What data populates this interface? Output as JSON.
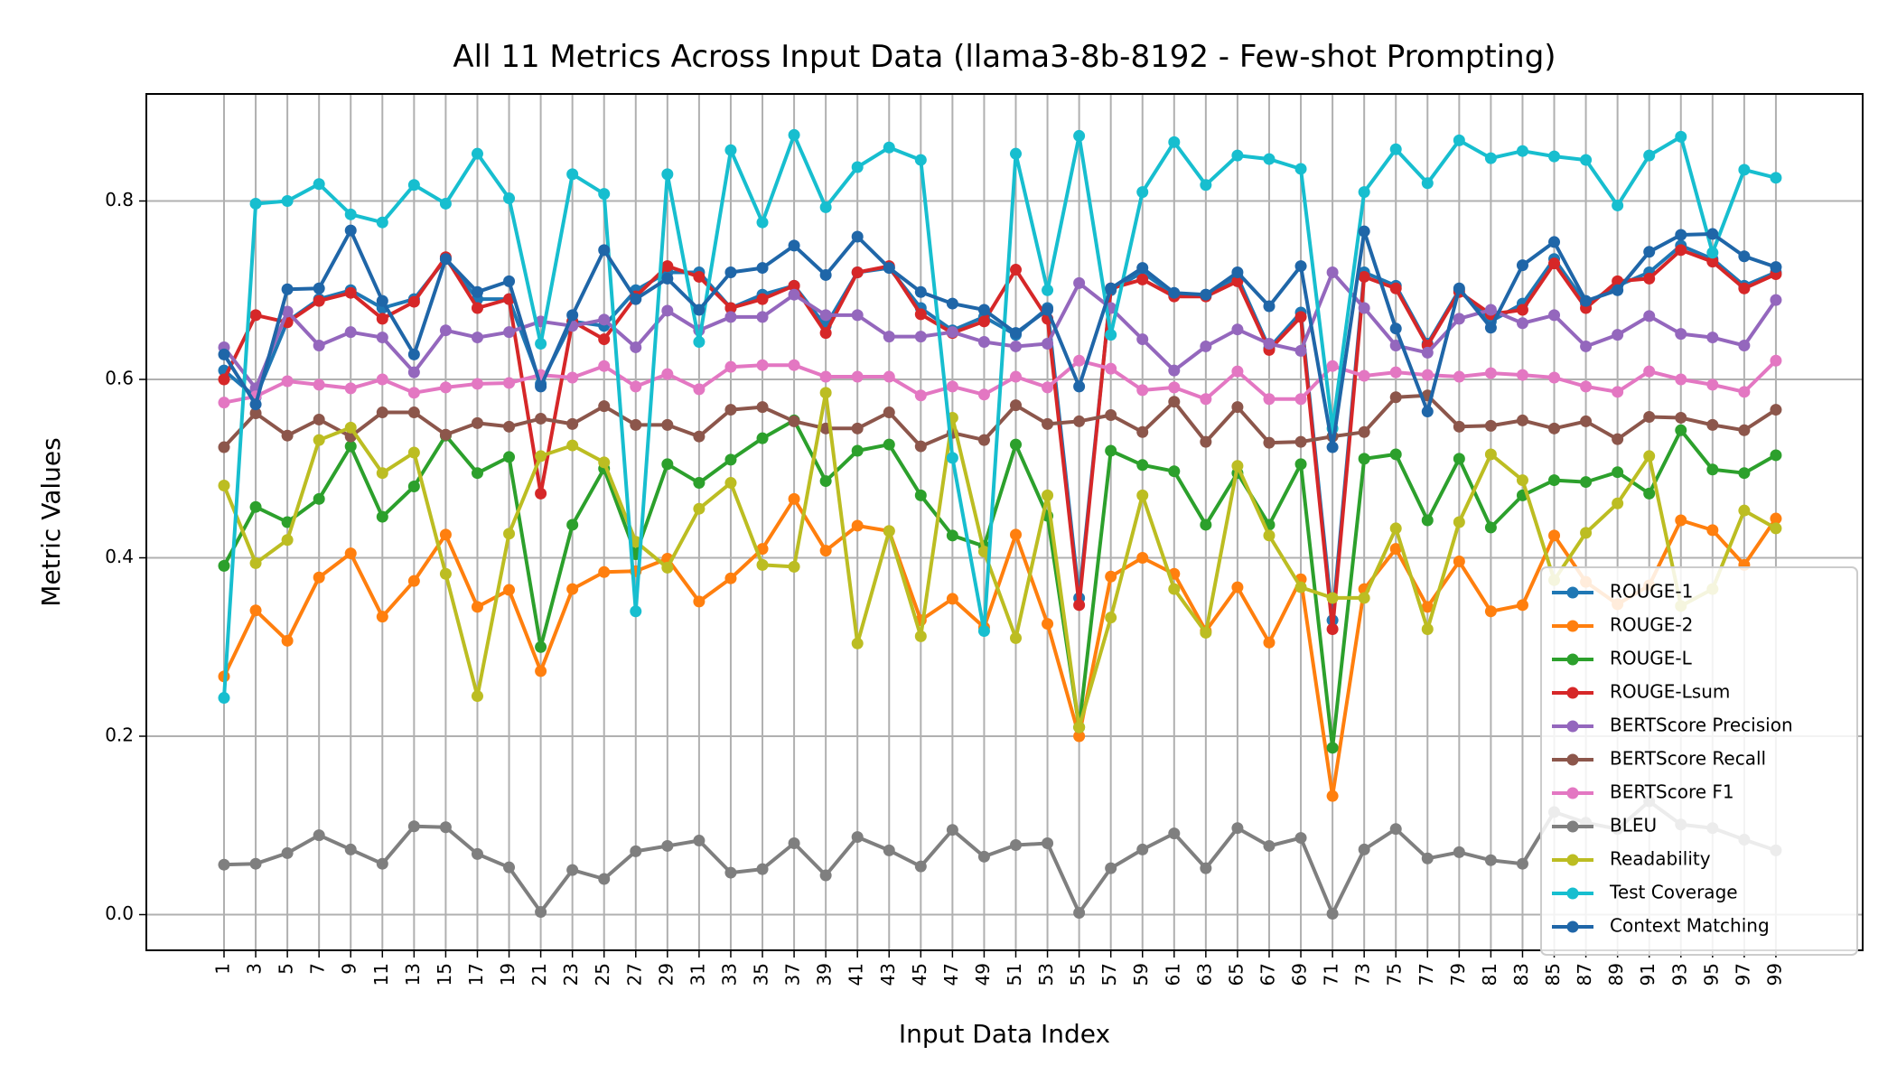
{
  "chart_data": {
    "type": "line",
    "title": "All 11 Metrics Across Input Data (llama3-8b-8192 - Few-shot Prompting)",
    "xlabel": "Input Data Index",
    "ylabel": "Metric Values",
    "ylim": [
      -0.04,
      0.92
    ],
    "yticks": [
      0.0,
      0.2,
      0.4,
      0.6,
      0.8
    ],
    "ytick_labels": [
      "0.0",
      "0.2",
      "0.4",
      "0.6",
      "0.8"
    ],
    "grid": true,
    "legend_position": "lower-right",
    "x": [
      1,
      3,
      5,
      7,
      9,
      11,
      13,
      15,
      17,
      19,
      21,
      23,
      25,
      27,
      29,
      31,
      33,
      35,
      37,
      39,
      41,
      43,
      45,
      47,
      49,
      51,
      53,
      55,
      57,
      59,
      61,
      63,
      65,
      67,
      69,
      71,
      73,
      75,
      77,
      79,
      81,
      83,
      85,
      87,
      89,
      91,
      93,
      95,
      97,
      99
    ],
    "xtick_labels": [
      "1",
      "3",
      "5",
      "7",
      "9",
      "11",
      "13",
      "15",
      "17",
      "19",
      "21",
      "23",
      "25",
      "27",
      "29",
      "31",
      "33",
      "35",
      "37",
      "39",
      "41",
      "43",
      "45",
      "47",
      "49",
      "51",
      "53",
      "55",
      "57",
      "59",
      "61",
      "63",
      "65",
      "67",
      "69",
      "71",
      "73",
      "75",
      "77",
      "79",
      "81",
      "83",
      "85",
      "87",
      "89",
      "91",
      "93",
      "95",
      "97",
      "99"
    ],
    "series": [
      {
        "name": "ROUGE-1",
        "color": "#1f77b4",
        "values": [
          0.61,
          0.58,
          0.665,
          0.69,
          0.7,
          0.68,
          0.69,
          0.735,
          0.69,
          0.69,
          0.595,
          0.665,
          0.66,
          0.7,
          0.72,
          0.72,
          0.68,
          0.695,
          0.705,
          0.66,
          0.72,
          0.725,
          0.68,
          0.655,
          0.67,
          0.65,
          0.68,
          0.355,
          0.7,
          0.72,
          0.695,
          0.695,
          0.715,
          0.635,
          0.675,
          0.33,
          0.72,
          0.705,
          0.64,
          0.7,
          0.665,
          0.685,
          0.735,
          0.685,
          0.705,
          0.72,
          0.75,
          0.735,
          0.705,
          0.72
        ]
      },
      {
        "name": "ROUGE-2",
        "color": "#ff7f0e",
        "values": [
          0.267,
          0.341,
          0.307,
          0.378,
          0.405,
          0.334,
          0.374,
          0.426,
          0.345,
          0.364,
          0.273,
          0.365,
          0.384,
          0.385,
          0.399,
          0.351,
          0.377,
          0.41,
          0.466,
          0.408,
          0.436,
          0.43,
          0.33,
          0.354,
          0.322,
          0.426,
          0.326,
          0.2,
          0.379,
          0.4,
          0.382,
          0.318,
          0.367,
          0.305,
          0.376,
          0.133,
          0.365,
          0.41,
          0.345,
          0.396,
          0.34,
          0.347,
          0.425,
          0.373,
          0.348,
          0.369,
          0.442,
          0.431,
          0.392,
          0.444
        ]
      },
      {
        "name": "ROUGE-L",
        "color": "#2ca02c",
        "values": [
          0.391,
          0.457,
          0.44,
          0.466,
          0.525,
          0.446,
          0.48,
          0.537,
          0.495,
          0.513,
          0.3,
          0.437,
          0.5,
          0.404,
          0.505,
          0.484,
          0.51,
          0.534,
          0.554,
          0.486,
          0.52,
          0.527,
          0.47,
          0.425,
          0.413,
          0.527,
          0.447,
          0.21,
          0.52,
          0.504,
          0.497,
          0.437,
          0.495,
          0.437,
          0.505,
          0.187,
          0.511,
          0.516,
          0.442,
          0.511,
          0.434,
          0.47,
          0.487,
          0.485,
          0.496,
          0.472,
          0.543,
          0.499,
          0.495,
          0.515
        ]
      },
      {
        "name": "ROUGE-Lsum",
        "color": "#d62728",
        "values": [
          0.6,
          0.672,
          0.664,
          0.688,
          0.697,
          0.668,
          0.687,
          0.737,
          0.68,
          0.69,
          0.472,
          0.665,
          0.645,
          0.693,
          0.727,
          0.715,
          0.68,
          0.69,
          0.705,
          0.652,
          0.72,
          0.727,
          0.673,
          0.652,
          0.665,
          0.723,
          0.668,
          0.347,
          0.702,
          0.712,
          0.693,
          0.693,
          0.71,
          0.633,
          0.67,
          0.32,
          0.715,
          0.702,
          0.638,
          0.698,
          0.673,
          0.678,
          0.73,
          0.68,
          0.71,
          0.713,
          0.745,
          0.732,
          0.702,
          0.718
        ]
      },
      {
        "name": "BERTScore Precision",
        "color": "#9467bd",
        "values": [
          0.636,
          0.59,
          0.676,
          0.638,
          0.653,
          0.647,
          0.608,
          0.655,
          0.647,
          0.653,
          0.665,
          0.66,
          0.667,
          0.636,
          0.677,
          0.655,
          0.67,
          0.67,
          0.695,
          0.672,
          0.672,
          0.648,
          0.648,
          0.653,
          0.642,
          0.637,
          0.64,
          0.708,
          0.68,
          0.645,
          0.61,
          0.637,
          0.656,
          0.64,
          0.632,
          0.72,
          0.68,
          0.638,
          0.63,
          0.668,
          0.678,
          0.663,
          0.672,
          0.637,
          0.65,
          0.671,
          0.651,
          0.647,
          0.638,
          0.689
        ]
      },
      {
        "name": "BERTScore Recall",
        "color": "#8c564b",
        "values": [
          0.524,
          0.562,
          0.537,
          0.555,
          0.536,
          0.563,
          0.563,
          0.538,
          0.551,
          0.547,
          0.556,
          0.55,
          0.57,
          0.549,
          0.549,
          0.536,
          0.566,
          0.569,
          0.553,
          0.545,
          0.545,
          0.563,
          0.525,
          0.54,
          0.532,
          0.571,
          0.55,
          0.553,
          0.56,
          0.541,
          0.575,
          0.53,
          0.569,
          0.529,
          0.53,
          0.536,
          0.541,
          0.58,
          0.582,
          0.547,
          0.548,
          0.554,
          0.545,
          0.553,
          0.533,
          0.558,
          0.557,
          0.549,
          0.543,
          0.566
        ]
      },
      {
        "name": "BERTScore F1",
        "color": "#e377c2",
        "values": [
          0.574,
          0.581,
          0.598,
          0.594,
          0.59,
          0.6,
          0.585,
          0.591,
          0.595,
          0.596,
          0.605,
          0.602,
          0.615,
          0.592,
          0.606,
          0.589,
          0.614,
          0.616,
          0.616,
          0.603,
          0.603,
          0.603,
          0.582,
          0.592,
          0.583,
          0.603,
          0.591,
          0.621,
          0.612,
          0.588,
          0.591,
          0.578,
          0.609,
          0.578,
          0.578,
          0.615,
          0.604,
          0.608,
          0.605,
          0.603,
          0.607,
          0.605,
          0.602,
          0.592,
          0.586,
          0.609,
          0.6,
          0.594,
          0.586,
          0.621
        ]
      },
      {
        "name": "BLEU",
        "color": "#7f7f7f",
        "values": [
          0.056,
          0.057,
          0.069,
          0.089,
          0.073,
          0.057,
          0.099,
          0.098,
          0.068,
          0.053,
          0.003,
          0.05,
          0.04,
          0.071,
          0.077,
          0.083,
          0.047,
          0.051,
          0.08,
          0.044,
          0.087,
          0.072,
          0.054,
          0.095,
          0.065,
          0.078,
          0.08,
          0.002,
          0.052,
          0.073,
          0.091,
          0.052,
          0.097,
          0.077,
          0.086,
          0.001,
          0.073,
          0.096,
          0.063,
          0.07,
          0.061,
          0.057,
          0.115,
          0.103,
          0.096,
          0.127,
          0.101,
          0.097,
          0.084,
          0.072
        ]
      },
      {
        "name": "Readability",
        "color": "#bcbd22",
        "values": [
          0.481,
          0.394,
          0.42,
          0.532,
          0.546,
          0.495,
          0.518,
          0.382,
          0.245,
          0.427,
          0.514,
          0.526,
          0.507,
          0.418,
          0.389,
          0.455,
          0.484,
          0.392,
          0.39,
          0.585,
          0.304,
          0.43,
          0.312,
          0.557,
          0.407,
          0.31,
          0.47,
          0.21,
          0.333,
          0.47,
          0.365,
          0.316,
          0.503,
          0.425,
          0.367,
          0.355,
          0.355,
          0.433,
          0.32,
          0.44,
          0.516,
          0.487,
          0.375,
          0.428,
          0.461,
          0.514,
          0.346,
          0.365,
          0.453,
          0.433
        ]
      },
      {
        "name": "Test Coverage",
        "color": "#17becf",
        "values": [
          0.243,
          0.797,
          0.8,
          0.819,
          0.785,
          0.776,
          0.818,
          0.797,
          0.853,
          0.803,
          0.64,
          0.83,
          0.808,
          0.34,
          0.83,
          0.642,
          0.857,
          0.776,
          0.874,
          0.793,
          0.838,
          0.86,
          0.846,
          0.512,
          0.318,
          0.853,
          0.7,
          0.873,
          0.65,
          0.81,
          0.866,
          0.818,
          0.851,
          0.847,
          0.836,
          0.545,
          0.81,
          0.858,
          0.82,
          0.868,
          0.848,
          0.856,
          0.85,
          0.846,
          0.795,
          0.851,
          0.872,
          0.742,
          0.835,
          0.826
        ]
      },
      {
        "name": "Context Matching",
        "color": "#1f66a8",
        "values": [
          0.628,
          0.572,
          0.701,
          0.702,
          0.767,
          0.688,
          0.628,
          0.735,
          0.698,
          0.71,
          0.592,
          0.672,
          0.745,
          0.69,
          0.713,
          0.678,
          0.72,
          0.725,
          0.75,
          0.717,
          0.76,
          0.725,
          0.698,
          0.685,
          0.678,
          0.652,
          0.678,
          0.592,
          0.702,
          0.725,
          0.697,
          0.695,
          0.72,
          0.682,
          0.727,
          0.524,
          0.766,
          0.657,
          0.564,
          0.702,
          0.658,
          0.728,
          0.754,
          0.688,
          0.7,
          0.743,
          0.762,
          0.763,
          0.738,
          0.726
        ]
      }
    ]
  }
}
